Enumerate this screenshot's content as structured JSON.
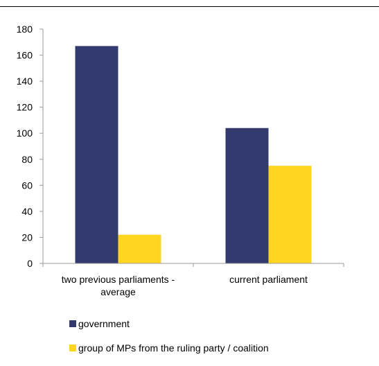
{
  "header": {
    "title": ""
  },
  "chart_data": {
    "type": "bar",
    "title": "",
    "xlabel": "",
    "ylabel": "",
    "categories": [
      "two previous parliaments - average",
      "current parliament"
    ],
    "category_lines": [
      [
        "two previous parliaments -",
        "average"
      ],
      [
        "current parliament"
      ]
    ],
    "series": [
      {
        "name": "government",
        "color": "#333a6e",
        "values": [
          167,
          104
        ]
      },
      {
        "name": "group of MPs from the ruling party / coalition",
        "color": "#ffd520",
        "values": [
          22,
          75
        ]
      }
    ],
    "ylim": [
      0,
      180
    ],
    "yticks": [
      0,
      20,
      40,
      60,
      80,
      100,
      120,
      140,
      160,
      180
    ],
    "grid": false,
    "legend_position": "bottom"
  }
}
